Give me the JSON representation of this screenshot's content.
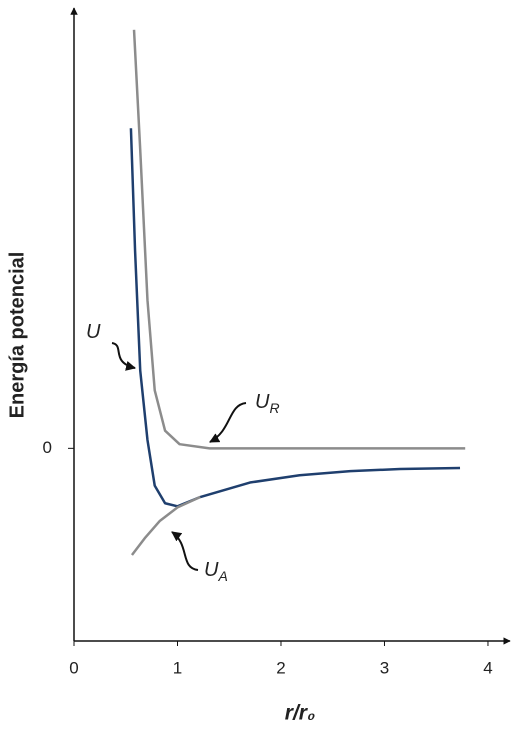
{
  "chart_data": {
    "type": "line",
    "y_label": "Energía potencial",
    "x_label": "r/r₀",
    "xlim": [
      0,
      4.21
    ],
    "xticks": [
      0,
      1,
      2,
      3,
      4
    ],
    "ylim": [
      -1.86,
      4.28
    ],
    "yticks": [
      0
    ],
    "series": [
      {
        "name": "U",
        "color": "#1f3f6e",
        "x": [
          0.55,
          0.59,
          0.64,
          0.71,
          0.78,
          0.88,
          1.0,
          1.22,
          1.7,
          2.18,
          2.67,
          3.15,
          3.73
        ],
        "values": [
          3.09,
          1.91,
          0.75,
          0.08,
          -0.36,
          -0.53,
          -0.56,
          -0.47,
          -0.33,
          -0.26,
          -0.22,
          -0.2,
          -0.19
        ]
      },
      {
        "name": "U",
        "subscript": "R",
        "color": "#8c8c8c",
        "x": [
          0.58,
          0.64,
          0.71,
          0.78,
          0.88,
          1.02,
          1.31,
          2.18,
          3.78
        ],
        "values": [
          4.04,
          2.88,
          1.43,
          0.56,
          0.17,
          0.04,
          0,
          0,
          0
        ]
      },
      {
        "name": "U",
        "subscript": "A",
        "color": "#8c8c8c",
        "x": [
          0.56,
          0.69,
          0.83,
          1.0,
          1.22
        ],
        "values": [
          -1.03,
          -0.86,
          -0.7,
          -0.57,
          -0.47
        ]
      }
    ]
  }
}
